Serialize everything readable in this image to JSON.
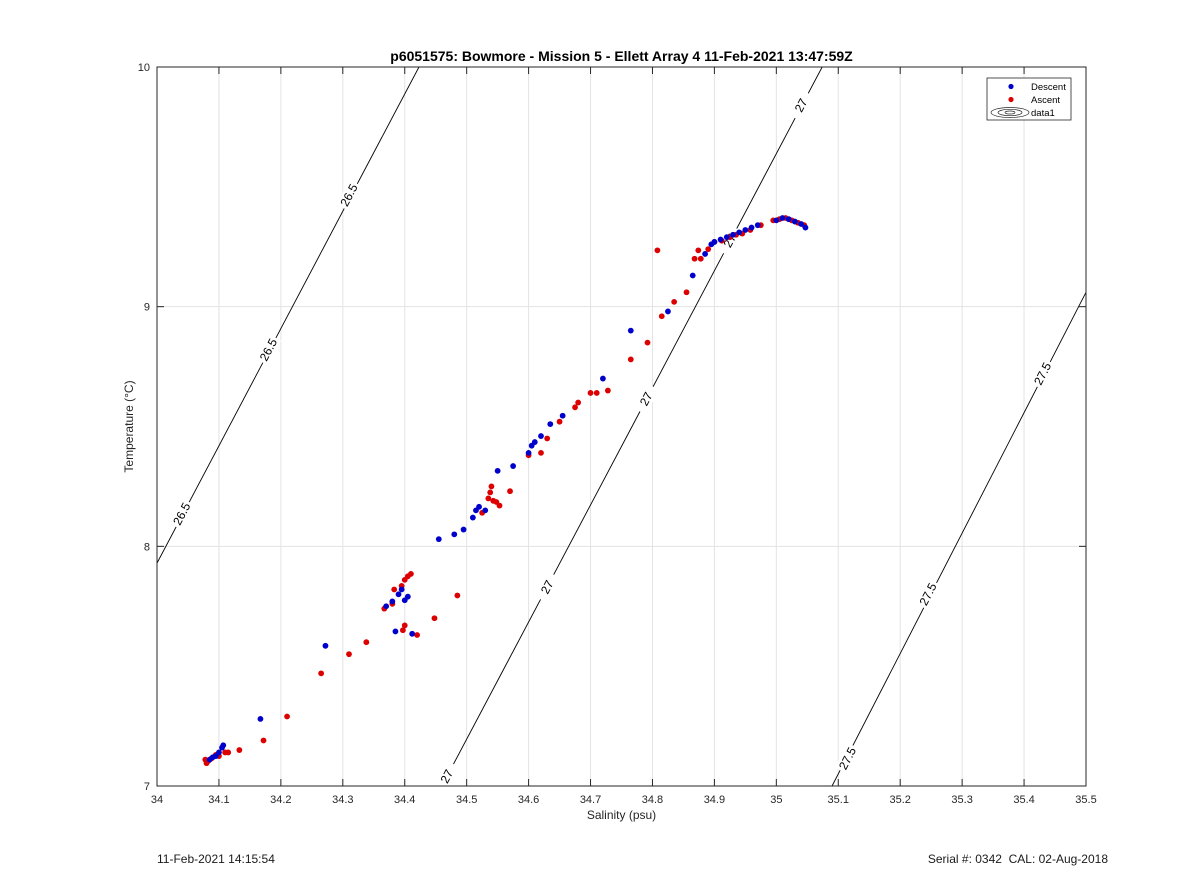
{
  "chart_data": {
    "type": "scatter",
    "title": "p6051575: Bowmore - Mission 5 - Ellett Array 4 11-Feb-2021 13:47:59Z",
    "xlabel": "Salinity (psu)",
    "ylabel": "Temperature (°C)",
    "xlim": [
      34,
      35.5
    ],
    "ylim": [
      7,
      10
    ],
    "xticks": [
      "34",
      "34.1",
      "34.2",
      "34.3",
      "34.4",
      "34.5",
      "34.6",
      "34.7",
      "34.8",
      "34.9",
      "35",
      "35.1",
      "35.2",
      "35.3",
      "35.4",
      "35.5"
    ],
    "yticks": [
      "7",
      "8",
      "9",
      "10"
    ],
    "grid": true,
    "legend_position": "top-right",
    "legend": [
      "Descent",
      "Ascent",
      "data1"
    ],
    "colors": {
      "descent": "#0000cc",
      "ascent": "#dd0000",
      "contour": "#000000"
    },
    "series": [
      {
        "name": "Descent",
        "points": [
          [
            34.085,
            7.11
          ],
          [
            34.09,
            7.12
          ],
          [
            34.095,
            7.125
          ],
          [
            34.1,
            7.14
          ],
          [
            34.105,
            7.16
          ],
          [
            34.107,
            7.17
          ],
          [
            34.167,
            7.28
          ],
          [
            34.272,
            7.585
          ],
          [
            34.37,
            7.75
          ],
          [
            34.38,
            7.77
          ],
          [
            34.385,
            7.645
          ],
          [
            34.39,
            7.8
          ],
          [
            34.395,
            7.82
          ],
          [
            34.4,
            7.775
          ],
          [
            34.405,
            7.79
          ],
          [
            34.412,
            7.635
          ],
          [
            34.455,
            8.03
          ],
          [
            34.48,
            8.05
          ],
          [
            34.495,
            8.07
          ],
          [
            34.51,
            8.12
          ],
          [
            34.515,
            8.15
          ],
          [
            34.52,
            8.165
          ],
          [
            34.53,
            8.15
          ],
          [
            34.55,
            8.315
          ],
          [
            34.575,
            8.335
          ],
          [
            34.6,
            8.39
          ],
          [
            34.605,
            8.42
          ],
          [
            34.61,
            8.435
          ],
          [
            34.62,
            8.46
          ],
          [
            34.635,
            8.51
          ],
          [
            34.655,
            8.545
          ],
          [
            34.72,
            8.7
          ],
          [
            34.765,
            8.9
          ],
          [
            34.825,
            8.98
          ],
          [
            34.865,
            9.13
          ],
          [
            34.885,
            9.22
          ],
          [
            34.895,
            9.26
          ],
          [
            34.9,
            9.27
          ],
          [
            34.91,
            9.28
          ],
          [
            34.92,
            9.29
          ],
          [
            34.93,
            9.3
          ],
          [
            34.94,
            9.31
          ],
          [
            34.95,
            9.32
          ],
          [
            34.96,
            9.33
          ],
          [
            34.97,
            9.34
          ],
          [
            35.0,
            9.36
          ],
          [
            35.01,
            9.37
          ],
          [
            35.02,
            9.365
          ],
          [
            35.03,
            9.355
          ],
          [
            35.04,
            9.345
          ],
          [
            35.047,
            9.33
          ]
        ]
      },
      {
        "name": "Ascent",
        "points": [
          [
            34.078,
            7.11
          ],
          [
            34.08,
            7.095
          ],
          [
            34.083,
            7.105
          ],
          [
            34.088,
            7.115
          ],
          [
            34.095,
            7.13
          ],
          [
            34.1,
            7.125
          ],
          [
            34.11,
            7.14
          ],
          [
            34.115,
            7.14
          ],
          [
            34.133,
            7.15
          ],
          [
            34.172,
            7.19
          ],
          [
            34.21,
            7.29
          ],
          [
            34.265,
            7.47
          ],
          [
            34.31,
            7.55
          ],
          [
            34.338,
            7.6
          ],
          [
            34.367,
            7.74
          ],
          [
            34.38,
            7.76
          ],
          [
            34.383,
            7.82
          ],
          [
            34.395,
            7.835
          ],
          [
            34.397,
            7.65
          ],
          [
            34.4,
            7.67
          ],
          [
            34.4,
            7.86
          ],
          [
            34.405,
            7.875
          ],
          [
            34.41,
            7.885
          ],
          [
            34.42,
            7.63
          ],
          [
            34.448,
            7.7
          ],
          [
            34.485,
            7.795
          ],
          [
            34.525,
            8.14
          ],
          [
            34.535,
            8.2
          ],
          [
            34.538,
            8.225
          ],
          [
            34.54,
            8.25
          ],
          [
            34.543,
            8.19
          ],
          [
            34.548,
            8.185
          ],
          [
            34.553,
            8.17
          ],
          [
            34.57,
            8.23
          ],
          [
            34.6,
            8.38
          ],
          [
            34.62,
            8.39
          ],
          [
            34.63,
            8.45
          ],
          [
            34.65,
            8.52
          ],
          [
            34.675,
            8.58
          ],
          [
            34.68,
            8.6
          ],
          [
            34.7,
            8.64
          ],
          [
            34.71,
            8.64
          ],
          [
            34.728,
            8.65
          ],
          [
            34.765,
            8.78
          ],
          [
            34.792,
            8.85
          ],
          [
            34.808,
            9.235
          ],
          [
            34.815,
            8.96
          ],
          [
            34.835,
            9.02
          ],
          [
            34.855,
            9.06
          ],
          [
            34.868,
            9.2
          ],
          [
            34.874,
            9.235
          ],
          [
            34.878,
            9.2
          ],
          [
            34.89,
            9.24
          ],
          [
            34.9,
            9.27
          ],
          [
            34.912,
            9.275
          ],
          [
            34.925,
            9.29
          ],
          [
            34.935,
            9.3
          ],
          [
            34.945,
            9.305
          ],
          [
            34.958,
            9.32
          ],
          [
            34.975,
            9.34
          ],
          [
            34.995,
            9.36
          ],
          [
            35.005,
            9.365
          ],
          [
            35.015,
            9.37
          ],
          [
            35.025,
            9.36
          ],
          [
            35.035,
            9.35
          ],
          [
            35.045,
            9.34
          ]
        ]
      }
    ],
    "contours": [
      {
        "level": "26.5",
        "line": [
          [
            34.0,
            7.93
          ],
          [
            34.423,
            10.0
          ]
        ],
        "labels": [
          {
            "s": 34.04,
            "t": 8.135
          },
          {
            "s": 34.18,
            "t": 8.82
          },
          {
            "s": 34.31,
            "t": 9.465
          }
        ]
      },
      {
        "level": "27",
        "line": [
          [
            34.46,
            7.0
          ],
          [
            35.074,
            10.0
          ]
        ],
        "labels": [
          {
            "s": 34.468,
            "t": 7.04
          },
          {
            "s": 34.63,
            "t": 7.83
          },
          {
            "s": 34.79,
            "t": 8.615
          },
          {
            "s": 34.925,
            "t": 9.275
          },
          {
            "s": 35.04,
            "t": 9.84
          }
        ]
      },
      {
        "level": "27.5",
        "line": [
          [
            35.09,
            7.0
          ],
          [
            35.5,
            9.06
          ]
        ],
        "labels": [
          {
            "s": 35.115,
            "t": 7.115
          },
          {
            "s": 35.245,
            "t": 7.8
          },
          {
            "s": 35.43,
            "t": 8.72
          }
        ]
      }
    ]
  },
  "footer": {
    "timestamp": "11-Feb-2021 14:15:54",
    "serial_text": "Serial #: 0342  CAL: 02-Aug-2018"
  }
}
